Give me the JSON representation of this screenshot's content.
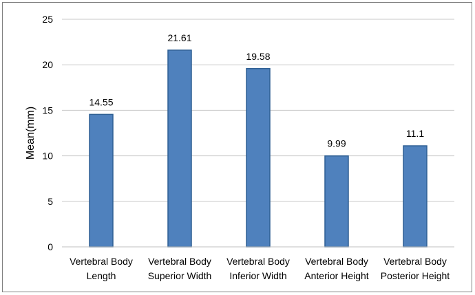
{
  "chart_data": {
    "type": "bar",
    "title": "",
    "xlabel": "",
    "ylabel": "Mean(mm)",
    "ylim": [
      0,
      25
    ],
    "yticks": [
      0,
      5,
      10,
      15,
      20,
      25
    ],
    "grid": true,
    "legend": "none",
    "bar_color": "#4f81bd",
    "bar_edge_color": "#2e5f93",
    "categories": [
      [
        "Vertebral Body",
        "Length"
      ],
      [
        "Vertebral Body",
        "Superior Width"
      ],
      [
        "Vertebral Body",
        "Inferior Width"
      ],
      [
        "Vertebral Body",
        "Anterior Height"
      ],
      [
        "Vertebral Body",
        "Posterior Height"
      ]
    ],
    "values": [
      14.55,
      21.61,
      19.58,
      9.99,
      11.1
    ],
    "data_labels": [
      "14.55",
      "21.61",
      "19.58",
      "9.99",
      "11.1"
    ]
  }
}
